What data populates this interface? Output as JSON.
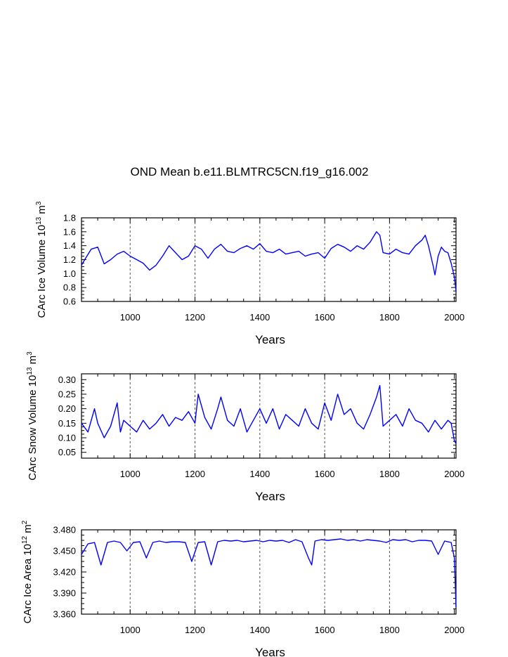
{
  "title": "OND Mean b.e11.BLMTRC5CN.f19_g16.002",
  "colors": {
    "series": "#0000ff",
    "axis": "#000000",
    "grid": "#555555"
  },
  "chart_data": [
    {
      "type": "line",
      "id": "ice-volume",
      "xlabel": "Years",
      "ylabel": {
        "pre": "CArc Ice Volume 10",
        "exp": "13",
        "mid": " m",
        "unit_exp": "3"
      },
      "xlim": [
        850,
        2005
      ],
      "ylim": [
        0.6,
        1.8
      ],
      "xticks": [
        1000,
        1200,
        1400,
        1600,
        1800,
        2000
      ],
      "xtick_labels": [
        "1000",
        "1200",
        "1400",
        "1600",
        "1800",
        "2000"
      ],
      "yticks": [
        0.6,
        0.8,
        1.0,
        1.2,
        1.4,
        1.6,
        1.8
      ],
      "ytick_labels": [
        "0.6",
        "0.8",
        "1.0",
        "1.2",
        "1.4",
        "1.6",
        "1.8"
      ],
      "grid_x": [
        1000,
        1200,
        1400,
        1600,
        1800
      ],
      "series": [
        {
          "name": "CArc Ice Volume",
          "x": [
            850,
            860,
            880,
            900,
            920,
            940,
            960,
            980,
            1000,
            1020,
            1040,
            1060,
            1080,
            1100,
            1120,
            1140,
            1160,
            1180,
            1200,
            1220,
            1240,
            1260,
            1280,
            1300,
            1320,
            1340,
            1360,
            1380,
            1400,
            1420,
            1440,
            1460,
            1480,
            1500,
            1520,
            1540,
            1560,
            1580,
            1600,
            1620,
            1640,
            1660,
            1680,
            1700,
            1720,
            1740,
            1760,
            1770,
            1780,
            1800,
            1820,
            1840,
            1860,
            1880,
            1900,
            1910,
            1920,
            1935,
            1940,
            1950,
            1960,
            1970,
            1980,
            1990,
            2000,
            2005
          ],
          "values": [
            1.12,
            1.2,
            1.35,
            1.38,
            1.14,
            1.2,
            1.28,
            1.32,
            1.25,
            1.2,
            1.15,
            1.05,
            1.12,
            1.25,
            1.4,
            1.3,
            1.2,
            1.25,
            1.4,
            1.35,
            1.22,
            1.35,
            1.42,
            1.32,
            1.3,
            1.36,
            1.4,
            1.35,
            1.43,
            1.32,
            1.3,
            1.35,
            1.28,
            1.3,
            1.32,
            1.25,
            1.28,
            1.3,
            1.22,
            1.36,
            1.42,
            1.38,
            1.32,
            1.4,
            1.35,
            1.45,
            1.6,
            1.55,
            1.3,
            1.28,
            1.35,
            1.3,
            1.28,
            1.4,
            1.48,
            1.55,
            1.4,
            1.1,
            0.98,
            1.25,
            1.38,
            1.32,
            1.3,
            1.15,
            0.95,
            0.75
          ]
        }
      ]
    },
    {
      "type": "line",
      "id": "snow-volume",
      "xlabel": "Years",
      "ylabel": {
        "pre": "CArc Snow Volume 10",
        "exp": "13",
        "mid": " m",
        "unit_exp": "3"
      },
      "xlim": [
        850,
        2005
      ],
      "ylim": [
        0.03,
        0.32
      ],
      "xticks": [
        1000,
        1200,
        1400,
        1600,
        1800,
        2000
      ],
      "xtick_labels": [
        "1000",
        "1200",
        "1400",
        "1600",
        "1800",
        "2000"
      ],
      "yticks": [
        0.05,
        0.1,
        0.15,
        0.2,
        0.25,
        0.3
      ],
      "ytick_labels": [
        "0.05",
        "0.10",
        "0.15",
        "0.20",
        "0.25",
        "0.30"
      ],
      "grid_x": [
        1000,
        1200,
        1400,
        1600,
        1800
      ],
      "series": [
        {
          "name": "CArc Snow Volume",
          "x": [
            850,
            870,
            890,
            900,
            920,
            940,
            960,
            970,
            980,
            1000,
            1020,
            1040,
            1060,
            1080,
            1100,
            1120,
            1140,
            1160,
            1180,
            1200,
            1210,
            1230,
            1250,
            1270,
            1280,
            1300,
            1320,
            1340,
            1360,
            1380,
            1400,
            1420,
            1440,
            1460,
            1480,
            1500,
            1520,
            1540,
            1560,
            1580,
            1600,
            1620,
            1640,
            1660,
            1680,
            1700,
            1720,
            1740,
            1760,
            1770,
            1780,
            1800,
            1820,
            1840,
            1860,
            1880,
            1900,
            1920,
            1940,
            1960,
            1980,
            1990,
            2000,
            2005
          ],
          "values": [
            0.15,
            0.12,
            0.2,
            0.15,
            0.1,
            0.14,
            0.22,
            0.12,
            0.16,
            0.14,
            0.12,
            0.16,
            0.13,
            0.15,
            0.18,
            0.14,
            0.17,
            0.16,
            0.19,
            0.15,
            0.25,
            0.17,
            0.13,
            0.2,
            0.24,
            0.16,
            0.14,
            0.2,
            0.12,
            0.16,
            0.2,
            0.15,
            0.2,
            0.13,
            0.18,
            0.16,
            0.14,
            0.2,
            0.15,
            0.13,
            0.22,
            0.16,
            0.25,
            0.18,
            0.2,
            0.15,
            0.13,
            0.18,
            0.24,
            0.28,
            0.14,
            0.16,
            0.18,
            0.14,
            0.2,
            0.16,
            0.15,
            0.12,
            0.16,
            0.13,
            0.16,
            0.15,
            0.09,
            0.08
          ]
        }
      ]
    },
    {
      "type": "line",
      "id": "ice-area",
      "xlabel": "Years",
      "ylabel": {
        "pre": "CArc Ice Area 10",
        "exp": "12",
        "mid": " m",
        "unit_exp": "2"
      },
      "xlim": [
        850,
        2005
      ],
      "ylim": [
        3.36,
        3.48
      ],
      "xticks": [
        1000,
        1200,
        1400,
        1600,
        1800,
        2000
      ],
      "xtick_labels": [
        "1000",
        "1200",
        "1400",
        "1600",
        "1800",
        "2000"
      ],
      "yticks": [
        3.36,
        3.39,
        3.42,
        3.45,
        3.48
      ],
      "ytick_labels": [
        "3.360",
        "3.390",
        "3.420",
        "3.450",
        "3.480"
      ],
      "grid_x": [
        1000,
        1200,
        1400,
        1600,
        1800
      ],
      "series": [
        {
          "name": "CArc Ice Area",
          "x": [
            850,
            870,
            890,
            910,
            930,
            950,
            970,
            990,
            1010,
            1030,
            1050,
            1070,
            1090,
            1110,
            1130,
            1150,
            1170,
            1190,
            1210,
            1230,
            1250,
            1270,
            1290,
            1310,
            1330,
            1350,
            1370,
            1390,
            1410,
            1430,
            1450,
            1470,
            1490,
            1510,
            1530,
            1550,
            1560,
            1570,
            1590,
            1610,
            1630,
            1650,
            1670,
            1690,
            1710,
            1730,
            1750,
            1770,
            1790,
            1810,
            1830,
            1850,
            1870,
            1890,
            1910,
            1930,
            1950,
            1970,
            1990,
            2000,
            2005
          ],
          "values": [
            3.445,
            3.46,
            3.462,
            3.43,
            3.462,
            3.464,
            3.462,
            3.45,
            3.462,
            3.463,
            3.44,
            3.462,
            3.464,
            3.462,
            3.463,
            3.463,
            3.462,
            3.435,
            3.462,
            3.463,
            3.43,
            3.463,
            3.465,
            3.464,
            3.465,
            3.463,
            3.464,
            3.465,
            3.463,
            3.465,
            3.464,
            3.465,
            3.462,
            3.466,
            3.463,
            3.44,
            3.43,
            3.464,
            3.466,
            3.465,
            3.466,
            3.467,
            3.465,
            3.466,
            3.464,
            3.466,
            3.465,
            3.464,
            3.462,
            3.466,
            3.465,
            3.466,
            3.463,
            3.465,
            3.465,
            3.464,
            3.445,
            3.464,
            3.462,
            3.44,
            3.37
          ]
        }
      ]
    }
  ]
}
